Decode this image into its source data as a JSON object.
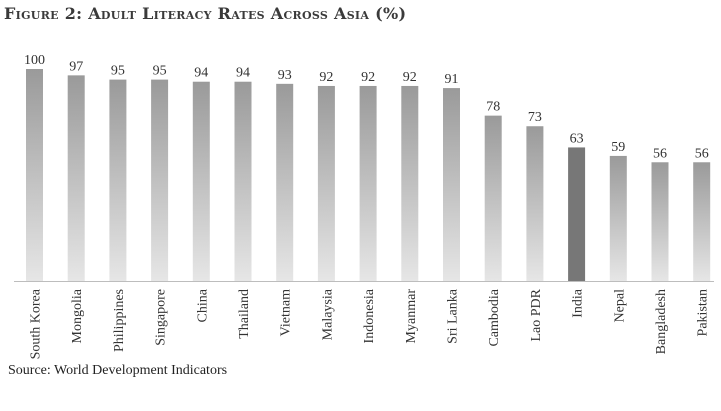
{
  "title": "Figure 2: Adult Literacy Rates Across Asia (%)",
  "source": "Source: World Development Indicators",
  "colors": {
    "bar_top": "#9a9a9a",
    "bar_bottom": "#e6e6e6",
    "highlight": "#777777",
    "axis": "#bdbdbd"
  },
  "chart_data": {
    "type": "bar",
    "categories": [
      "South Korea",
      "Mongolia",
      "Philippines",
      "Singapore",
      "China",
      "Thailand",
      "Vietnam",
      "Malaysia",
      "Indonesia",
      "Myanmar",
      "Sri Lanka",
      "Cambodia",
      "Lao PDR",
      "India",
      "Nepal",
      "Bangladesh",
      "Pakistan"
    ],
    "values": [
      100,
      97,
      95,
      95,
      94,
      94,
      93,
      92,
      92,
      92,
      91,
      78,
      73,
      63,
      59,
      56,
      56
    ],
    "highlight": "India",
    "ylim": [
      0,
      100
    ],
    "grid": false,
    "legend": "none"
  }
}
